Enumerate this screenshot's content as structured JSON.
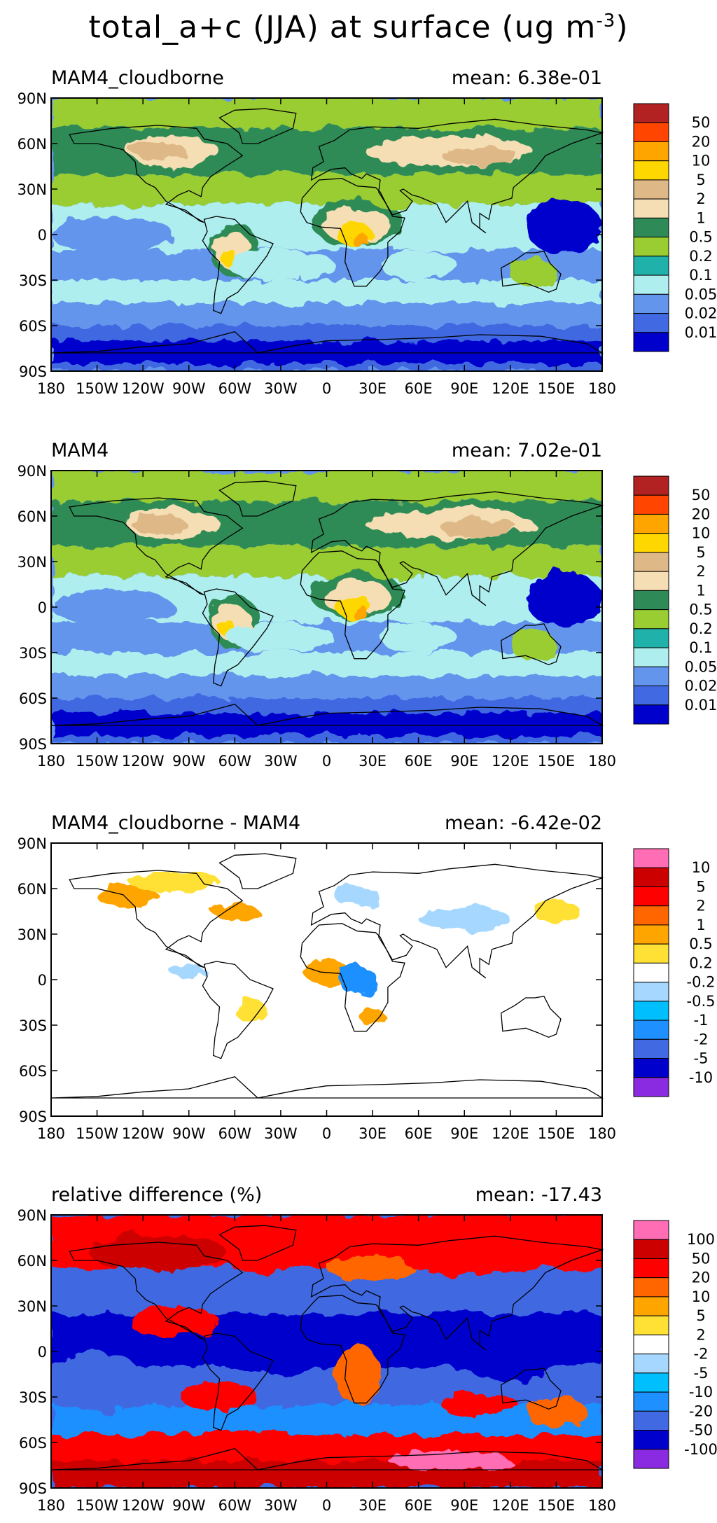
{
  "figure": {
    "title": "total_a+c (JJA) at surface (ug m",
    "title_exponent": "-3",
    "title_close": ")"
  },
  "x_ticks": [
    "180",
    "150W",
    "120W",
    "90W",
    "60W",
    "30W",
    "0",
    "30E",
    "60E",
    "90E",
    "120E",
    "150E",
    "180"
  ],
  "y_ticks": [
    "90N",
    "60N",
    "30N",
    "0",
    "30S",
    "60S",
    "90S"
  ],
  "chart_data": [
    {
      "type": "heatmap",
      "panel_title": "MAM4_cloudborne",
      "mean_text": "mean: 6.38e-01",
      "field": "absolute",
      "xlim": [
        -180,
        180
      ],
      "ylim": [
        -90,
        90
      ],
      "colorbar_levels": [
        "50",
        "20",
        "10",
        "5",
        "2",
        "1",
        "0.5",
        "0.2",
        "0.1",
        "0.05",
        "0.02",
        "0.01"
      ],
      "colorbar_colors": [
        "#b22222",
        "#ff4500",
        "#ffa500",
        "#ffd700",
        "#deb887",
        "#f5deb3",
        "#2e8b57",
        "#9acd32",
        "#20b2aa",
        "#afeeee",
        "#6495ed",
        "#4169e1",
        "#0000cd"
      ]
    },
    {
      "type": "heatmap",
      "panel_title": "MAM4",
      "mean_text": "mean: 7.02e-01",
      "field": "absolute",
      "xlim": [
        -180,
        180
      ],
      "ylim": [
        -90,
        90
      ],
      "colorbar_levels": [
        "50",
        "20",
        "10",
        "5",
        "2",
        "1",
        "0.5",
        "0.2",
        "0.1",
        "0.05",
        "0.02",
        "0.01"
      ],
      "colorbar_colors": [
        "#b22222",
        "#ff4500",
        "#ffa500",
        "#ffd700",
        "#deb887",
        "#f5deb3",
        "#2e8b57",
        "#9acd32",
        "#20b2aa",
        "#afeeee",
        "#6495ed",
        "#4169e1",
        "#0000cd"
      ]
    },
    {
      "type": "heatmap",
      "panel_title": "MAM4_cloudborne - MAM4",
      "mean_text": "mean: -6.42e-02",
      "field": "difference",
      "xlim": [
        -180,
        180
      ],
      "ylim": [
        -90,
        90
      ],
      "colorbar_levels": [
        "10",
        "5",
        "2",
        "1",
        "0.5",
        "0.2",
        "-0.2",
        "-0.5",
        "-1",
        "-2",
        "-5",
        "-10"
      ],
      "colorbar_colors": [
        "#ff6eb4",
        "#cd0000",
        "#ff0000",
        "#ff6600",
        "#ffa500",
        "#ffe135",
        "#ffffff",
        "#a6d8ff",
        "#00bfff",
        "#1e90ff",
        "#4169e1",
        "#0000cd",
        "#8a2be2"
      ]
    },
    {
      "type": "heatmap",
      "panel_title": "relative difference (%)",
      "mean_text": "mean: -17.43",
      "field": "relative",
      "xlim": [
        -180,
        180
      ],
      "ylim": [
        -90,
        90
      ],
      "colorbar_levels": [
        "100",
        "50",
        "20",
        "10",
        "5",
        "2",
        "-2",
        "-5",
        "-10",
        "-20",
        "-50",
        "-100"
      ],
      "colorbar_colors": [
        "#ff6eb4",
        "#cd0000",
        "#ff0000",
        "#ff6600",
        "#ffa500",
        "#ffe135",
        "#ffffff",
        "#a6d8ff",
        "#00bfff",
        "#1e90ff",
        "#4169e1",
        "#0000cd",
        "#8a2be2"
      ]
    }
  ]
}
